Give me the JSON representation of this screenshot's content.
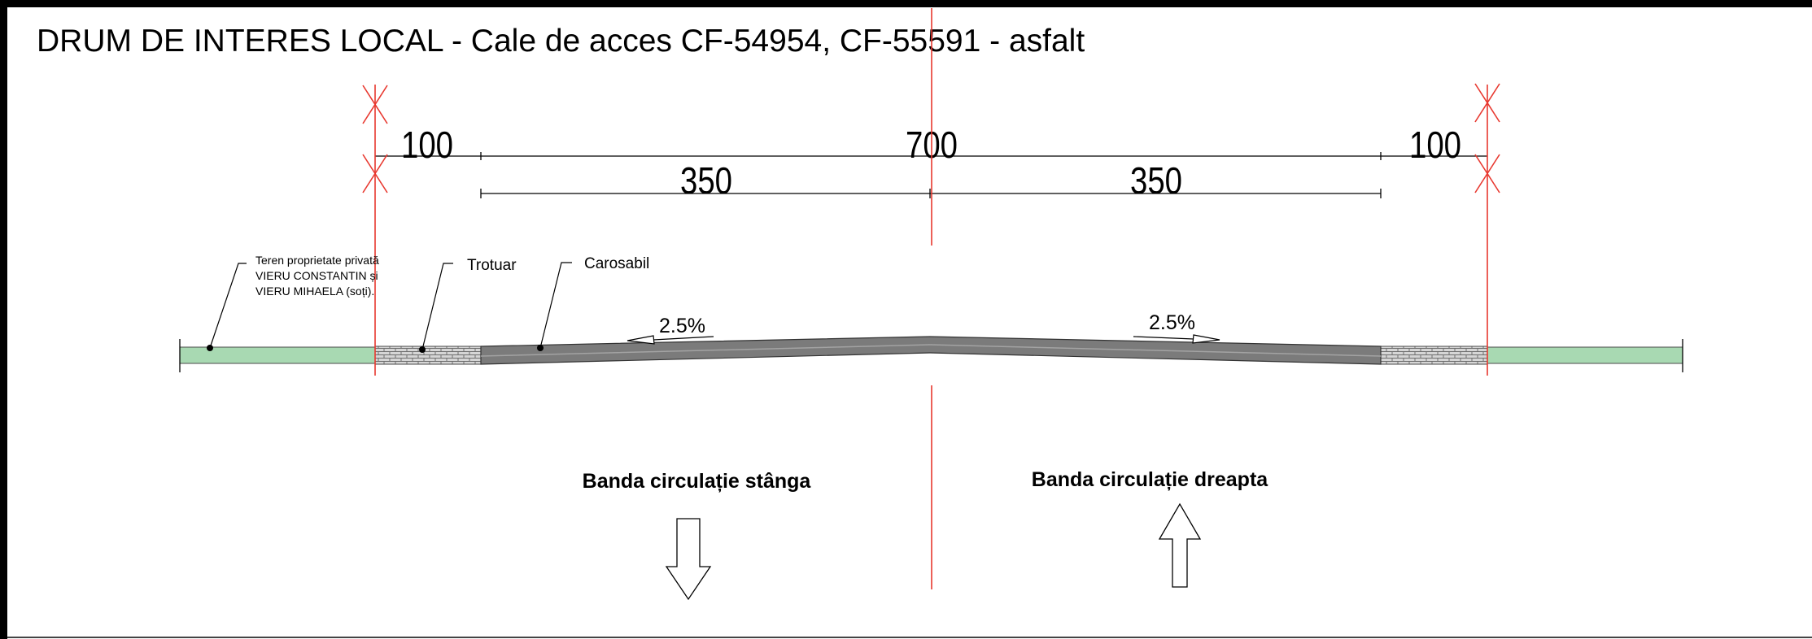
{
  "title": "DRUM DE INTERES LOCAL - Cale de acces CF-54954, CF-55591 - asfalt",
  "dimensions": {
    "left_sidewalk": "100",
    "total": "700",
    "right_sidewalk": "100",
    "left_lane": "350",
    "right_lane": "350"
  },
  "slopes": {
    "left": "2.5%",
    "right": "2.5%"
  },
  "callouts": {
    "private_land": [
      "Teren proprietate privată",
      "VIERU CONSTANTIN și",
      "VIERU MIHAELA (soți)."
    ],
    "sidewalk": "Trotuar",
    "roadway": "Carosabil"
  },
  "lanes": {
    "left": "Banda circulație stânga",
    "right": "Banda circulație dreapta"
  },
  "colors": {
    "axis_red": "#e8382f",
    "green_strip": "#a8d9b2",
    "asphalt": "#7a7a7a",
    "paving": "#cfcfcf"
  }
}
